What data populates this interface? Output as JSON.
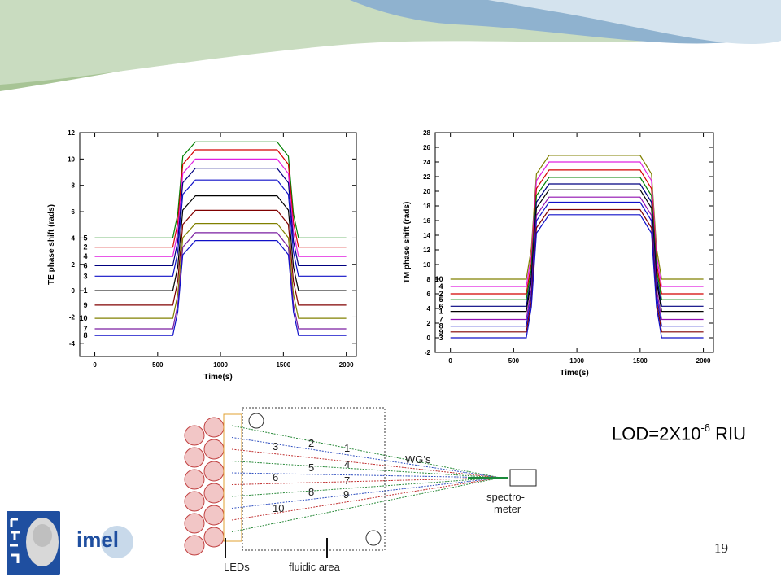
{
  "slide": {
    "number": "19",
    "lod_prefix": "LOD=2X10",
    "lod_exp": "-6",
    "lod_suffix": " RIU"
  },
  "colors": {
    "black": "#000000",
    "red": "#d40000",
    "blue": "#1010c8",
    "magenta": "#e020e0",
    "olive": "#808000",
    "navy": "#000080",
    "wine": "#800000",
    "violet": "#7a1ea0",
    "green": "#008000",
    "purple": "#9010b0",
    "banner_green": "#9fbf8a",
    "banner_blue": "#7fa6c8"
  },
  "chart_data": [
    {
      "type": "line",
      "xlabel": "Time(s)",
      "ylabel": "TE phase shift (rads)",
      "xlim": [
        -120,
        2080
      ],
      "ylim": [
        -5,
        12
      ],
      "xticks": [
        0,
        500,
        1000,
        1500,
        2000
      ],
      "yticks": [
        -4,
        -2,
        0,
        2,
        4,
        6,
        8,
        10,
        12
      ],
      "x": [
        0,
        620,
        660,
        700,
        800,
        1450,
        1540,
        1580,
        1620,
        2000
      ],
      "series": [
        {
          "name": "5",
          "color": "green",
          "base": 4.0,
          "top": 11.3
        },
        {
          "name": "2",
          "color": "red",
          "base": 3.3,
          "top": 10.7
        },
        {
          "name": "4",
          "color": "magenta",
          "base": 2.6,
          "top": 10.0
        },
        {
          "name": "6",
          "color": "navy",
          "base": 1.9,
          "top": 9.3
        },
        {
          "name": "3",
          "color": "blue",
          "base": 1.1,
          "top": 8.4
        },
        {
          "name": "1",
          "color": "black",
          "base": 0.0,
          "top": 7.2
        },
        {
          "name": "9",
          "color": "wine",
          "base": -1.1,
          "top": 6.1
        },
        {
          "name": "10",
          "color": "olive",
          "base": -2.1,
          "top": 5.1
        },
        {
          "name": "7",
          "color": "violet",
          "base": -2.9,
          "top": 4.4
        },
        {
          "name": "8",
          "color": "blue",
          "base": -3.4,
          "top": 3.8
        }
      ]
    },
    {
      "type": "line",
      "xlabel": "Time(s)",
      "ylabel": "TM phase shift (rads)",
      "xlim": [
        -120,
        2080
      ],
      "ylim": [
        -2,
        28
      ],
      "xticks": [
        0,
        500,
        1000,
        1500,
        2000
      ],
      "yticks": [
        -2,
        0,
        2,
        4,
        6,
        8,
        10,
        12,
        14,
        16,
        18,
        20,
        22,
        24,
        26,
        28
      ],
      "x": [
        0,
        600,
        640,
        680,
        780,
        1500,
        1590,
        1630,
        1670,
        2000
      ],
      "series": [
        {
          "name": "10",
          "color": "olive",
          "base": 8.0,
          "top": 24.9
        },
        {
          "name": "4",
          "color": "magenta",
          "base": 7.0,
          "top": 24.0
        },
        {
          "name": "2",
          "color": "red",
          "base": 6.0,
          "top": 22.9
        },
        {
          "name": "5",
          "color": "green",
          "base": 5.2,
          "top": 21.9
        },
        {
          "name": "6",
          "color": "navy",
          "base": 4.3,
          "top": 21.0
        },
        {
          "name": "1",
          "color": "black",
          "base": 3.6,
          "top": 20.2
        },
        {
          "name": "7",
          "color": "purple",
          "base": 2.5,
          "top": 19.2
        },
        {
          "name": "8",
          "color": "blue",
          "base": 1.6,
          "top": 18.5
        },
        {
          "name": "9",
          "color": "wine",
          "base": 0.8,
          "top": 17.5
        },
        {
          "name": "3",
          "color": "blue",
          "base": 0.0,
          "top": 16.8
        }
      ]
    }
  ],
  "diagram": {
    "led_label": "LEDs",
    "fluidic_label": "fluidic area",
    "wg_label": "WG’s",
    "spectro_line1": "spectro-",
    "spectro_line2": "meter",
    "waveguide_numbers": [
      "1",
      "2",
      "3",
      "4",
      "5",
      "6",
      "7",
      "8",
      "9",
      "10"
    ]
  }
}
